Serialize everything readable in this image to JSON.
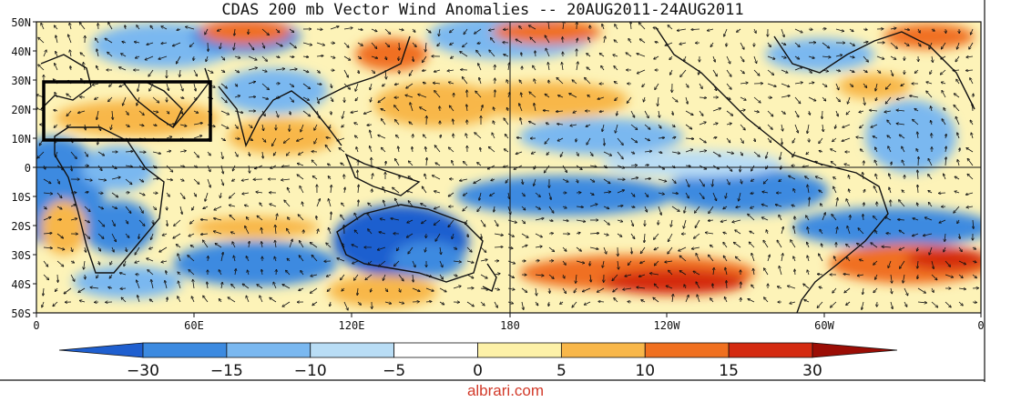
{
  "title": "CDAS 200 mb Vector Wind Anomalies -- 20AUG2011-24AUG2011",
  "lat_labels": [
    "50N",
    "40N",
    "30N",
    "20N",
    "10N",
    "0",
    "10S",
    "20S",
    "30S",
    "40S",
    "50S"
  ],
  "lon_labels": [
    "0",
    "60E",
    "120E",
    "180",
    "120W",
    "60W",
    "0"
  ],
  "colorbar": {
    "ticks": [
      "−30",
      "−15",
      "−10",
      "−5",
      "0",
      "5",
      "10",
      "15",
      "30"
    ],
    "colors": [
      "#1f5fcf",
      "#3c8ae0",
      "#7ab8f0",
      "#b9ddf5",
      "#ffffff",
      "#fdf1a8",
      "#f8b74a",
      "#f07020",
      "#d42a10",
      "#9b0d05"
    ]
  },
  "highlight_box": {
    "lon_range": [
      "0",
      "60E"
    ],
    "lat_range": [
      "10N",
      "30N"
    ]
  },
  "watermark": "albrari.com"
}
